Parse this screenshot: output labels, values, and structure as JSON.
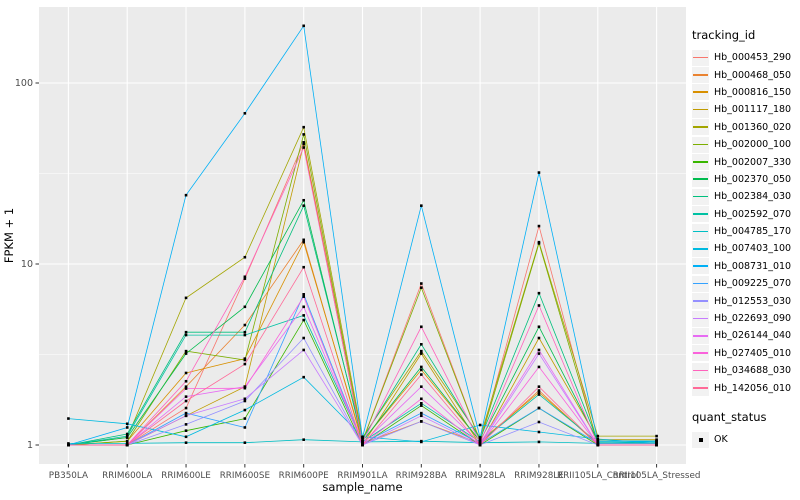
{
  "chart_data": {
    "type": "line",
    "title": "",
    "xlabel": "sample_name",
    "ylabel": "FPKM + 1",
    "y_scale": "log10",
    "ylim": [
      0.79,
      260
    ],
    "y_major_ticks": [
      "1",
      "10",
      "100"
    ],
    "y_major_values": [
      1,
      10,
      100
    ],
    "y_minor_values": [
      3.162,
      31.62
    ],
    "grid": true,
    "legend_position": "right",
    "panel_bg": "#EBEBEB",
    "grid_color": "#FFFFFF",
    "tick_label_color": "#4D4D4D",
    "axis_title_color": "#000000",
    "legend_color_title": "tracking_id",
    "legend_shape_title": "quant_status",
    "quant_status_items": [
      {
        "label": "OK",
        "shape": "square",
        "color": "#000000"
      }
    ],
    "point_style": {
      "shape": "square",
      "color": "#000000",
      "size": 2.6
    },
    "categories": [
      "PB350LA",
      "RRIM600LA",
      "RRIM600LE",
      "RRIM600SE",
      "RRIM600PE",
      "RRIM901LA",
      "RRIM928BA",
      "RRIM928LA",
      "RRIM928LE",
      "RRII105LA_Control",
      "RRII105LA_Stressed"
    ],
    "series": [
      {
        "name": "Hb_000453_290",
        "color": "#F8766D",
        "values": [
          1.0,
          1.0,
          1.6,
          8.3,
          47,
          1.05,
          7.8,
          1.05,
          16.2,
          1.0,
          1.0
        ]
      },
      {
        "name": "Hb_000468_050",
        "color": "#EA8331",
        "values": [
          1.0,
          1.0,
          2.1,
          4.6,
          13.6,
          1.02,
          1.35,
          1.02,
          2.0,
          1.0,
          1.0
        ]
      },
      {
        "name": "Hb_000816_150",
        "color": "#D89000",
        "values": [
          1.0,
          1.05,
          2.5,
          3.0,
          13.2,
          1.05,
          2.6,
          1.05,
          1.95,
          1.02,
          1.02
        ]
      },
      {
        "name": "Hb_001117_180",
        "color": "#C09B00",
        "values": [
          1.0,
          1.0,
          1.45,
          2.1,
          46,
          1.0,
          3.2,
          1.0,
          3.9,
          1.07,
          1.07
        ]
      },
      {
        "name": "Hb_001360_020",
        "color": "#A3A500",
        "values": [
          1.0,
          1.1,
          6.5,
          10.9,
          57,
          1.1,
          3.3,
          1.1,
          13.2,
          1.12,
          1.12
        ]
      },
      {
        "name": "Hb_002000_100",
        "color": "#7CAE00",
        "values": [
          1.0,
          1.05,
          3.3,
          2.95,
          52,
          1.05,
          7.4,
          1.05,
          13.0,
          1.02,
          1.02
        ]
      },
      {
        "name": "Hb_002007_330",
        "color": "#39B600",
        "values": [
          1.0,
          1.0,
          1.2,
          1.4,
          4.9,
          1.0,
          1.65,
          1.0,
          1.6,
          1.0,
          1.0
        ]
      },
      {
        "name": "Hb_002370_050",
        "color": "#00BB4E",
        "values": [
          1.0,
          1.1,
          3.2,
          5.8,
          22.5,
          1.05,
          2.7,
          1.05,
          4.5,
          1.05,
          1.05
        ]
      },
      {
        "name": "Hb_002384_030",
        "color": "#00BF7D",
        "values": [
          1.0,
          1.15,
          4.2,
          4.2,
          21.0,
          1.08,
          3.6,
          1.08,
          6.9,
          1.05,
          1.05
        ]
      },
      {
        "name": "Hb_002592_070",
        "color": "#00C1A3",
        "values": [
          1.0,
          1.12,
          4.05,
          4.05,
          5.2,
          1.04,
          1.7,
          1.04,
          1.9,
          1.03,
          1.03
        ]
      },
      {
        "name": "Hb_004785_170",
        "color": "#00BFC4",
        "values": [
          1.02,
          1.02,
          1.03,
          1.03,
          1.07,
          1.04,
          1.05,
          1.03,
          1.04,
          1.02,
          1.05
        ]
      },
      {
        "name": "Hb_007403_100",
        "color": "#00BAE0",
        "values": [
          1.4,
          1.31,
          1.11,
          1.56,
          2.37,
          1.11,
          1.04,
          1.29,
          1.18,
          1.08,
          1.02
        ]
      },
      {
        "name": "Hb_008731_010",
        "color": "#00B0F6",
        "values": [
          1.0,
          1.25,
          24,
          68,
          207,
          1.1,
          21,
          1.1,
          32,
          1.05,
          1.05
        ]
      },
      {
        "name": "Hb_009225_070",
        "color": "#35A2FF",
        "values": [
          1.0,
          1.0,
          1.5,
          1.25,
          6.8,
          1.02,
          1.5,
          1.02,
          1.6,
          1.02,
          1.02
        ]
      },
      {
        "name": "Hb_012553_030",
        "color": "#9590FF",
        "values": [
          1.0,
          1.0,
          1.3,
          1.75,
          3.9,
          1.0,
          1.35,
          1.0,
          1.34,
          1.0,
          1.0
        ]
      },
      {
        "name": "Hb_022693_090",
        "color": "#C77CFF",
        "values": [
          1.0,
          1.0,
          1.45,
          1.8,
          3.35,
          1.0,
          1.45,
          1.0,
          3.2,
          1.0,
          1.0
        ]
      },
      {
        "name": "Hb_026144_040",
        "color": "#E76BF3",
        "values": [
          1.0,
          1.0,
          1.85,
          2.1,
          5.8,
          1.02,
          2.1,
          1.02,
          3.35,
          1.0,
          1.0
        ]
      },
      {
        "name": "Hb_027405_010",
        "color": "#FA62DB",
        "values": [
          1.0,
          1.0,
          2.05,
          2.06,
          6.6,
          1.0,
          1.8,
          1.0,
          2.7,
          1.0,
          1.0
        ]
      },
      {
        "name": "Hb_034688_030",
        "color": "#FF62BC",
        "values": [
          1.0,
          1.0,
          2.25,
          8.5,
          44,
          1.03,
          4.5,
          1.03,
          5.9,
          1.0,
          1.0
        ]
      },
      {
        "name": "Hb_142056_010",
        "color": "#FF6A98",
        "values": [
          1.0,
          1.0,
          1.75,
          2.8,
          9.6,
          1.0,
          2.45,
          1.0,
          2.1,
          1.0,
          1.0
        ]
      }
    ]
  }
}
